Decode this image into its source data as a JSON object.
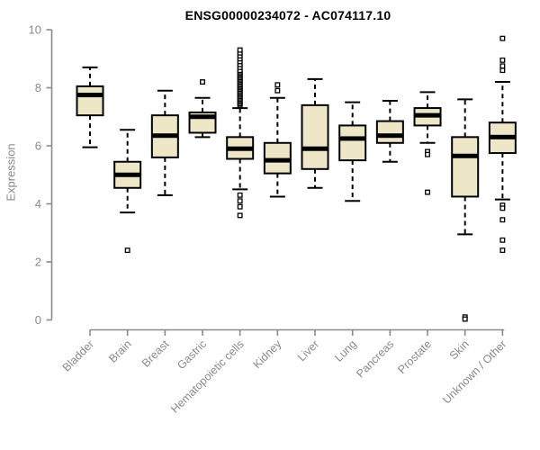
{
  "chart_data": {
    "type": "boxplot",
    "title": "ENSG00000234072 - AC074117.10",
    "xlabel": "",
    "ylabel": "Expression",
    "ylim": [
      0,
      10
    ],
    "yticks": [
      0,
      2,
      4,
      6,
      8,
      10
    ],
    "grid": false,
    "legend": "none",
    "categories": [
      "Bladder",
      "Brain",
      "Breast",
      "Gastric",
      "Hematopoietic cells",
      "Kidney",
      "Liver",
      "Lung",
      "Pancreas",
      "Prostate",
      "Skin",
      "Unknown / Other"
    ],
    "series": [
      {
        "category": "Bladder",
        "whisker_low": 5.95,
        "q1": 7.05,
        "median": 7.75,
        "q3": 8.05,
        "whisker_high": 8.7,
        "outliers": []
      },
      {
        "category": "Brain",
        "whisker_low": 3.7,
        "q1": 4.55,
        "median": 5.0,
        "q3": 5.45,
        "whisker_high": 6.55,
        "outliers": [
          2.4
        ]
      },
      {
        "category": "Breast",
        "whisker_low": 4.3,
        "q1": 5.6,
        "median": 6.35,
        "q3": 7.05,
        "whisker_high": 7.9,
        "outliers": []
      },
      {
        "category": "Gastric",
        "whisker_low": 6.3,
        "q1": 6.45,
        "median": 7.0,
        "q3": 7.15,
        "whisker_high": 7.65,
        "outliers": [
          8.2
        ]
      },
      {
        "category": "Hematopoietic cells",
        "whisker_low": 4.5,
        "q1": 5.55,
        "median": 5.9,
        "q3": 6.3,
        "whisker_high": 7.3,
        "outliers": [
          7.4,
          7.45,
          7.5,
          7.55,
          7.6,
          7.65,
          7.7,
          7.75,
          7.8,
          7.85,
          7.9,
          7.95,
          8.0,
          8.05,
          8.1,
          8.15,
          8.2,
          8.25,
          8.3,
          8.35,
          8.4,
          8.45,
          8.5,
          8.55,
          8.6,
          8.7,
          8.8,
          8.9,
          9.0,
          9.1,
          9.2,
          9.3,
          4.3,
          4.1,
          3.9,
          3.6
        ]
      },
      {
        "category": "Kidney",
        "whisker_low": 4.25,
        "q1": 5.05,
        "median": 5.5,
        "q3": 6.1,
        "whisker_high": 7.65,
        "outliers": [
          7.9,
          8.1
        ]
      },
      {
        "category": "Liver",
        "whisker_low": 4.55,
        "q1": 5.2,
        "median": 5.9,
        "q3": 7.4,
        "whisker_high": 8.3,
        "outliers": []
      },
      {
        "category": "Lung",
        "whisker_low": 4.1,
        "q1": 5.5,
        "median": 6.25,
        "q3": 6.7,
        "whisker_high": 7.5,
        "outliers": []
      },
      {
        "category": "Pancreas",
        "whisker_low": 5.45,
        "q1": 6.1,
        "median": 6.35,
        "q3": 6.85,
        "whisker_high": 7.55,
        "outliers": []
      },
      {
        "category": "Prostate",
        "whisker_low": 6.1,
        "q1": 6.7,
        "median": 7.05,
        "q3": 7.3,
        "whisker_high": 7.85,
        "outliers": [
          5.8,
          5.7,
          4.4
        ]
      },
      {
        "category": "Skin",
        "whisker_low": 2.95,
        "q1": 4.25,
        "median": 5.65,
        "q3": 6.3,
        "whisker_high": 7.6,
        "outliers": [
          0.1,
          0.03
        ]
      },
      {
        "category": "Unknown / Other",
        "whisker_low": 4.15,
        "q1": 5.75,
        "median": 6.3,
        "q3": 6.8,
        "whisker_high": 8.2,
        "outliers": [
          9.7,
          8.95,
          8.75,
          8.6,
          3.95,
          3.85,
          3.45,
          2.75,
          2.4
        ]
      }
    ],
    "colors": {
      "box_fill": "#ede7c8",
      "box_border": "#000000",
      "median": "#000000",
      "whisker": "#000000",
      "outlier_fill": "#ffffff",
      "axis": "#8a8a8a",
      "tick_label": "#8a8a8a",
      "title": "#000000",
      "background": "#ffffff"
    }
  }
}
